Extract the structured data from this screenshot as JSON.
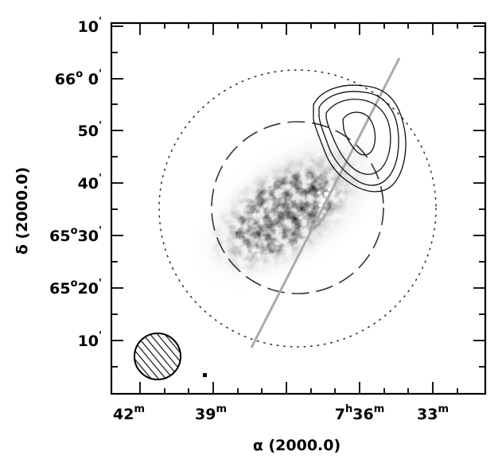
{
  "image": {
    "kind": "astronomical sky map (greyscale galaxy image with contours)",
    "colors": {
      "frame": "#000000",
      "slit_line": "#aaaaaa",
      "contours": "#111111",
      "background": "#ffffff"
    }
  },
  "axes": {
    "x_title": "α (2000.0)",
    "y_title": "δ (2000.0)",
    "x_ticks": [
      {
        "label": "42",
        "sup": "m"
      },
      {
        "label": "39",
        "sup": "m"
      },
      {
        "label": "7",
        "sup": "h",
        "label2": "36",
        "sup2": "m"
      },
      {
        "label": "33",
        "sup": "m"
      }
    ],
    "y_ticks": [
      {
        "label": "10",
        "sup": "'"
      },
      {
        "label": "66",
        "sup": "o",
        "label2": " 0",
        "sup2": "'"
      },
      {
        "label": "50",
        "sup": "'"
      },
      {
        "label": "40",
        "sup": "'"
      },
      {
        "label": "65",
        "sup": "o",
        "label2": "30",
        "sup2": "'"
      },
      {
        "label": "65",
        "sup": "o",
        "label2": "20",
        "sup2": "'"
      },
      {
        "label": "10",
        "sup": "'"
      }
    ]
  }
}
